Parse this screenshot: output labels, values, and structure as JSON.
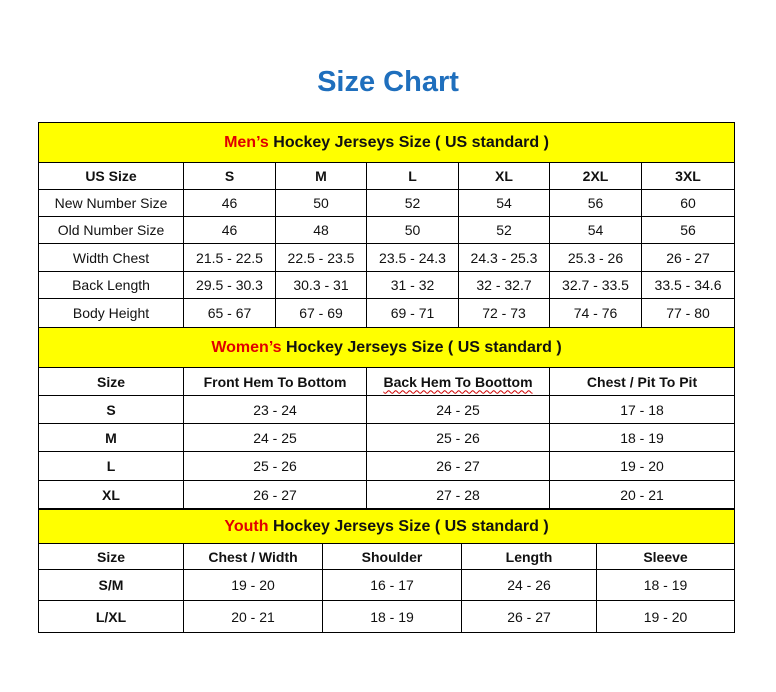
{
  "title": "Size Chart",
  "colors": {
    "title": "#1f6fbd",
    "band": "#ffff00",
    "highlight": "#e00000"
  },
  "men": {
    "title_highlight": "Men’s",
    "title_rest": " Hockey Jerseys Size ( US standard )",
    "headers": [
      "US Size",
      "S",
      "M",
      "L",
      "XL",
      "2XL",
      "3XL"
    ],
    "rows": [
      [
        "New Number Size",
        "46",
        "50",
        "52",
        "54",
        "56",
        "60"
      ],
      [
        "Old Number Size",
        "46",
        "48",
        "50",
        "52",
        "54",
        "56"
      ],
      [
        "Width Chest",
        "21.5 - 22.5",
        "22.5 - 23.5",
        "23.5 - 24.3",
        "24.3 - 25.3",
        "25.3 - 26",
        "26 - 27"
      ],
      [
        "Back Length",
        "29.5 - 30.3",
        "30.3 - 31",
        "31 - 32",
        "32 - 32.7",
        "32.7 - 33.5",
        "33.5 - 34.6"
      ],
      [
        "Body Height",
        "65 - 67",
        "67 - 69",
        "69 - 71",
        "72 - 73",
        "74 - 76",
        "77 - 80"
      ]
    ]
  },
  "women": {
    "title_highlight": "Women’s",
    "title_rest": " Hockey Jerseys Size ( US standard )",
    "headers": [
      "Size",
      "Front Hem To Bottom",
      "Back Hem To Boottom",
      "Chest / Pit To Pit"
    ],
    "rows": [
      [
        "S",
        "23 - 24",
        "24 - 25",
        "17 - 18"
      ],
      [
        "M",
        "24 - 25",
        "25 - 26",
        "18 - 19"
      ],
      [
        "L",
        "25 - 26",
        "26 - 27",
        "19 - 20"
      ],
      [
        "XL",
        "26 - 27",
        "27 - 28",
        "20 - 21"
      ]
    ]
  },
  "youth": {
    "title_highlight": "Youth",
    "title_rest": " Hockey Jerseys Size ( US standard )",
    "headers": [
      "Size",
      "Chest / Width",
      "Shoulder",
      "Length",
      "Sleeve"
    ],
    "rows": [
      [
        "S/M",
        "19 - 20",
        "16 - 17",
        "24 - 26",
        "18 - 19"
      ],
      [
        "L/XL",
        "20 - 21",
        "18 - 19",
        "26 - 27",
        "19 - 20"
      ]
    ]
  }
}
